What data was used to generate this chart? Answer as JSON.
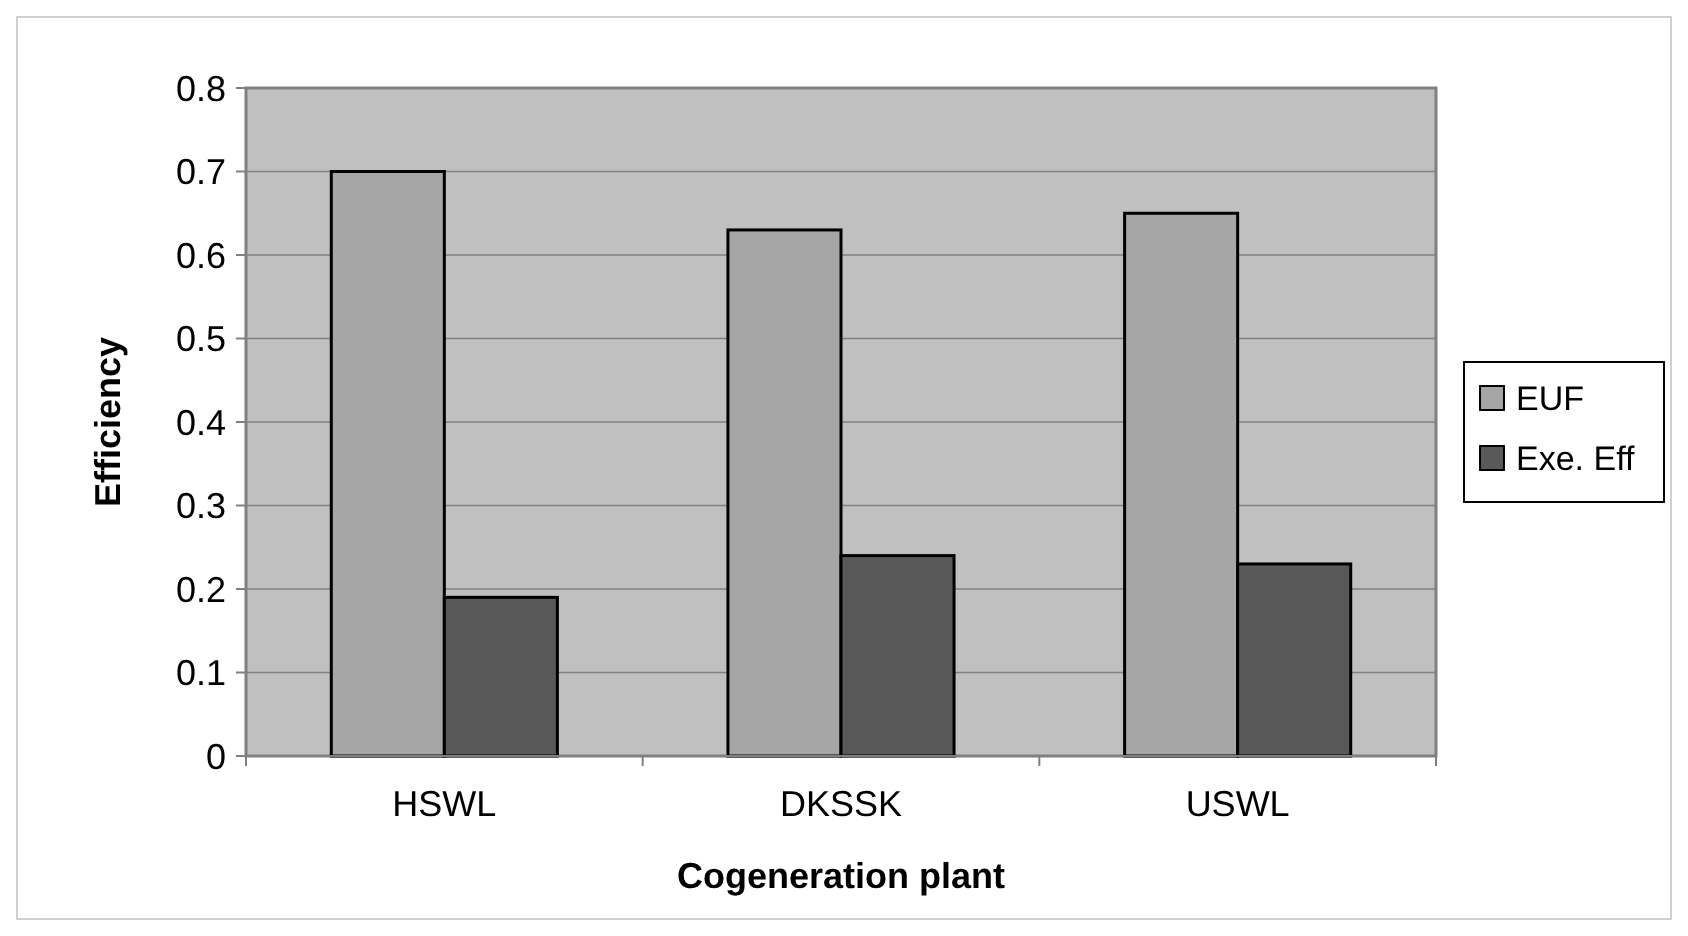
{
  "chart_data": {
    "type": "bar",
    "xlabel": "Cogeneration plant",
    "ylabel": "Efficiency",
    "categories": [
      "HSWL",
      "DKSSK",
      "USWL"
    ],
    "series": [
      {
        "name": "EUF",
        "color": "#a6a6a6",
        "values": [
          0.7,
          0.63,
          0.65
        ]
      },
      {
        "name": "Exe. Eff",
        "color": "#595959",
        "values": [
          0.19,
          0.24,
          0.23
        ]
      }
    ],
    "ylim": [
      0,
      0.8
    ],
    "yticks": [
      0,
      0.1,
      0.2,
      0.3,
      0.4,
      0.5,
      0.6,
      0.7,
      0.8
    ],
    "grid": "y",
    "legend": "right"
  }
}
